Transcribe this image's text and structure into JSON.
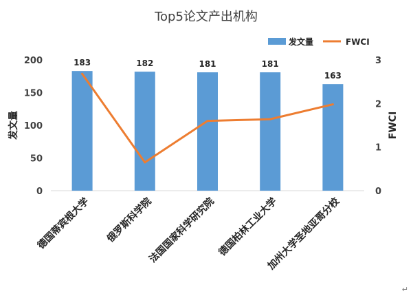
{
  "chart_data": {
    "type": "bar",
    "title": "Top5论文产出机构",
    "categories": [
      "德国蒂宾根大学",
      "俄罗斯科学院",
      "法国国家科学研究院",
      "德国柏林工业大学",
      "加州大学圣地亚哥分校"
    ],
    "series": [
      {
        "name": "发文量",
        "type": "bar",
        "axis": "left",
        "values": [
          183,
          182,
          181,
          181,
          163
        ],
        "color": "#5b9bd5"
      },
      {
        "name": "FWCI",
        "type": "line",
        "axis": "right",
        "values": [
          2.68,
          0.65,
          1.6,
          1.64,
          1.98
        ],
        "color": "#ed7d31"
      }
    ],
    "ylabel": "发文量",
    "y2label": "FWCI",
    "ylim": [
      0,
      200
    ],
    "y2lim": [
      0,
      3
    ],
    "yticks": [
      "0",
      "50",
      "100",
      "150",
      "200"
    ],
    "y2ticks": [
      "0",
      "1",
      "2",
      "3"
    ],
    "data_labels": [
      "183",
      "182",
      "181",
      "181",
      "163"
    ],
    "legend": {
      "position": "top-right",
      "items": [
        "发文量",
        "FWCI"
      ]
    },
    "grid": false
  },
  "footer": {
    "mark": "↵"
  }
}
